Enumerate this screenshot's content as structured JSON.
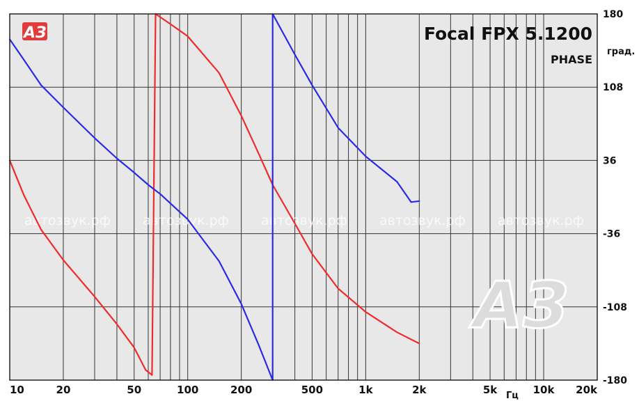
{
  "chart_data": {
    "type": "line",
    "title": "Focal FPX 5.1200",
    "subtitle": "PHASE",
    "xlabel": "Гц",
    "ylabel": "град.",
    "x_scale": "log",
    "xlim": [
      10,
      20000
    ],
    "ylim": [
      -180,
      180
    ],
    "x_ticks": [
      {
        "value": 10,
        "label": "10"
      },
      {
        "value": 20,
        "label": "20"
      },
      {
        "value": 50,
        "label": "50"
      },
      {
        "value": 100,
        "label": "100"
      },
      {
        "value": 200,
        "label": "200"
      },
      {
        "value": 500,
        "label": "500"
      },
      {
        "value": 1000,
        "label": "1k"
      },
      {
        "value": 2000,
        "label": "2k"
      },
      {
        "value": 5000,
        "label": "5k"
      },
      {
        "value": 10000,
        "label": "10k"
      },
      {
        "value": 20000,
        "label": "20k"
      }
    ],
    "y_ticks": [
      {
        "value": 180,
        "label": "180"
      },
      {
        "value": 108,
        "label": "108"
      },
      {
        "value": 36,
        "label": "36"
      },
      {
        "value": -36,
        "label": "-36"
      },
      {
        "value": -108,
        "label": "-108"
      },
      {
        "value": -180,
        "label": "-180"
      }
    ],
    "grid": true,
    "series": [
      {
        "color": "#ef2b2b",
        "segments": [
          [
            [
              10,
              36
            ],
            [
              12,
              2
            ],
            [
              15,
              -32
            ],
            [
              20,
              -62
            ],
            [
              30,
              -98
            ],
            [
              40,
              -125
            ],
            [
              50,
              -148
            ],
            [
              58,
              -170
            ],
            [
              63,
              -175
            ]
          ],
          [
            [
              63,
              -175
            ],
            [
              66,
              180
            ],
            [
              80,
              170
            ],
            [
              100,
              158
            ],
            [
              150,
              122
            ],
            [
              200,
              80
            ],
            [
              250,
              43
            ],
            [
              300,
              12
            ],
            [
              400,
              -26
            ],
            [
              500,
              -56
            ],
            [
              700,
              -90
            ],
            [
              1000,
              -113
            ],
            [
              1500,
              -133
            ],
            [
              2000,
              -144
            ]
          ]
        ]
      },
      {
        "color": "#2a2ae6",
        "segments": [
          [
            [
              10,
              155
            ],
            [
              12,
              135
            ],
            [
              15,
              110
            ],
            [
              20,
              88
            ],
            [
              30,
              58
            ],
            [
              40,
              38
            ],
            [
              50,
              24
            ],
            [
              60,
              12
            ],
            [
              70,
              3
            ],
            [
              100,
              -22
            ],
            [
              150,
              -63
            ],
            [
              200,
              -105
            ],
            [
              250,
              -145
            ],
            [
              300,
              -180
            ]
          ],
          [
            [
              300,
              180
            ],
            [
              400,
              140
            ],
            [
              500,
              110
            ],
            [
              700,
              68
            ],
            [
              1000,
              40
            ],
            [
              1500,
              15
            ],
            [
              1800,
              -5
            ],
            [
              2000,
              -4
            ]
          ]
        ]
      }
    ],
    "watermark": "автозвук.рф",
    "logo": "АЗ"
  }
}
